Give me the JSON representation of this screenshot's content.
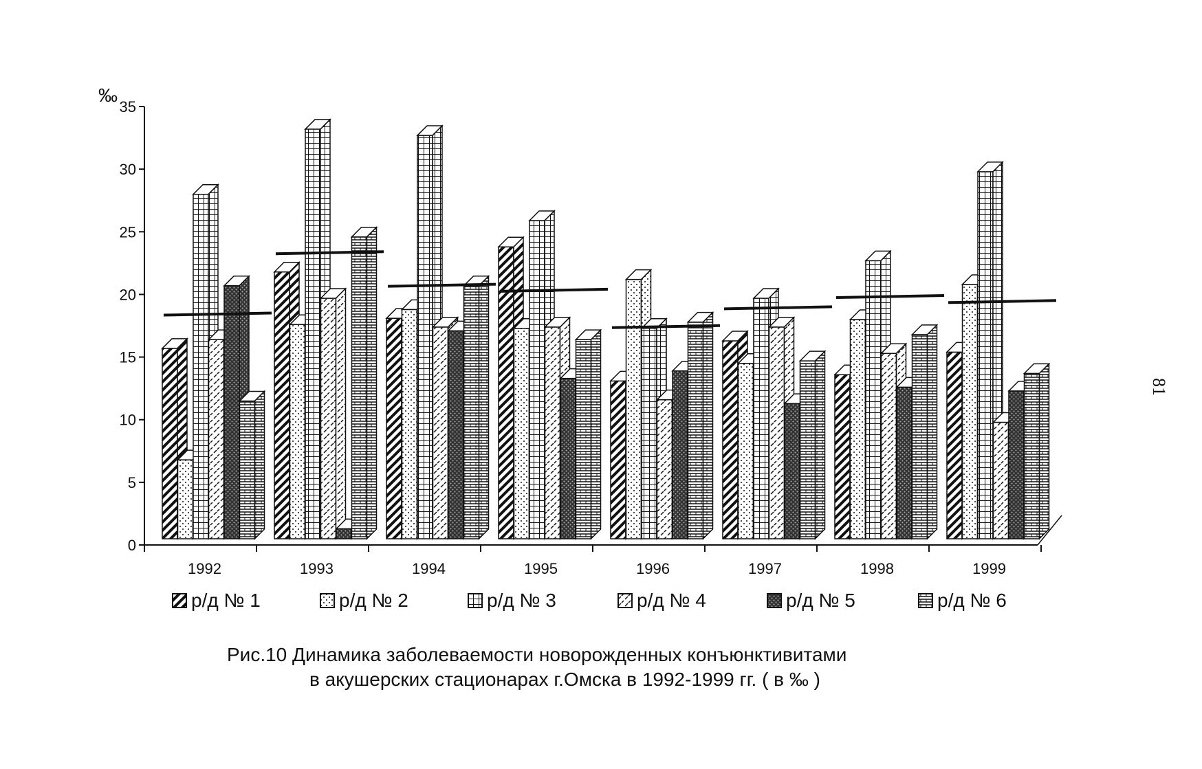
{
  "chart_data": {
    "type": "bar",
    "ylabel": "‰",
    "ylim": [
      0,
      35
    ],
    "yticks": [
      "0",
      "5",
      "10",
      "15",
      "20",
      "25",
      "30",
      "35"
    ],
    "categories": [
      "1992",
      "1993",
      "1994",
      "1995",
      "1996",
      "1997",
      "1998",
      "1999"
    ],
    "series": [
      {
        "name": "р/д № 1",
        "values": [
          15.2,
          21.3,
          17.6,
          23.3,
          12.6,
          15.8,
          13.1,
          14.9
        ]
      },
      {
        "name": "р/д № 2",
        "values": [
          6.3,
          17.1,
          18.3,
          16.8,
          20.7,
          14.0,
          17.5,
          20.3
        ]
      },
      {
        "name": "р/д № 3",
        "values": [
          27.5,
          32.7,
          32.2,
          25.4,
          16.8,
          19.2,
          22.2,
          29.3
        ]
      },
      {
        "name": "р/д № 4",
        "values": [
          15.9,
          19.2,
          16.9,
          16.9,
          11.1,
          16.9,
          14.8,
          9.3
        ]
      },
      {
        "name": "р/д № 5",
        "values": [
          20.2,
          0.8,
          16.6,
          12.8,
          13.4,
          10.8,
          12.1,
          11.8
        ]
      },
      {
        "name": "р/д № 6",
        "values": [
          11.0,
          24.1,
          20.2,
          15.9,
          17.3,
          14.2,
          16.3,
          13.2
        ]
      }
    ],
    "averages": [
      17.8,
      22.7,
      20.1,
      19.7,
      16.8,
      18.3,
      19.2,
      18.8
    ],
    "grid": false,
    "legend_position": "bottom"
  },
  "caption": {
    "line1": "Рис.10  Динамика заболеваемости новорожденных конъюнктивитами",
    "line2": "в акушерских стационарах г.Омска в 1992-1999 гг. ( в ‰ )"
  },
  "page_number": "81"
}
